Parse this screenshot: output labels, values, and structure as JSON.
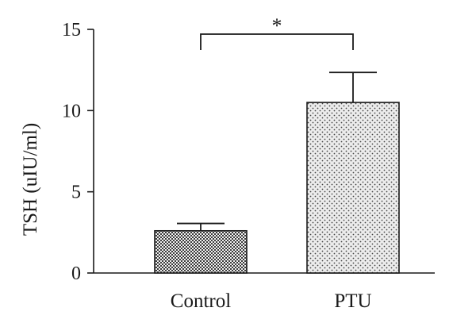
{
  "chart_data": {
    "type": "bar",
    "categories": [
      "Control",
      "PTU"
    ],
    "values": [
      2.6,
      10.5
    ],
    "errors": [
      0.45,
      1.85
    ],
    "ylabel": "TSH (uIU/ml)",
    "xlabel": "",
    "ylim": [
      0,
      15
    ],
    "yticks": [
      0,
      5,
      10,
      15
    ],
    "ytick_labels": [
      "0",
      "5",
      "10",
      "15"
    ],
    "bar_patterns": [
      "checkered",
      "dotted"
    ],
    "bar_fill_colors": [
      "#555555",
      "#e6e6e6"
    ],
    "significance": {
      "label": "*",
      "between": [
        "Control",
        "PTU"
      ]
    },
    "grid": false
  }
}
